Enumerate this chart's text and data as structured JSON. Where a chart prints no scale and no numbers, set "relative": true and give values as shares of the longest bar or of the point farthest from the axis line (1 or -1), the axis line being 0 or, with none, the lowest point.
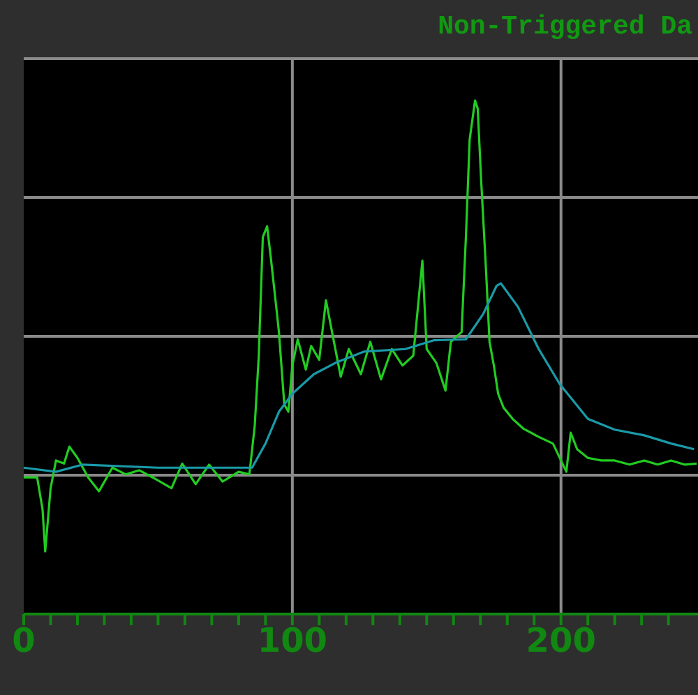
{
  "chart_data": {
    "type": "line",
    "title": "Non-Triggered Da",
    "relative": true,
    "grid": true,
    "xlim": [
      0,
      251
    ],
    "xticks": [
      0,
      {
        "value": 10,
        "label": null
      },
      {
        "value": 20,
        "label": null
      },
      {
        "value": 30,
        "label": null
      },
      {
        "value": 40,
        "label": null
      },
      {
        "value": 50,
        "label": null
      },
      {
        "value": 60,
        "label": null
      },
      {
        "value": 70,
        "label": null
      },
      {
        "value": 80,
        "label": null
      },
      {
        "value": 90,
        "label": null
      },
      100,
      {
        "value": 110,
        "label": null
      },
      {
        "value": 120,
        "label": null
      },
      {
        "value": 130,
        "label": null
      },
      {
        "value": 140,
        "label": null
      },
      {
        "value": 150,
        "label": null
      },
      {
        "value": 160,
        "label": null
      },
      {
        "value": 170,
        "label": null
      },
      {
        "value": 180,
        "label": null
      },
      {
        "value": 190,
        "label": null
      },
      200,
      {
        "value": 210,
        "label": null
      },
      {
        "value": 220,
        "label": null
      },
      {
        "value": 230,
        "label": null
      },
      {
        "value": 240,
        "label": null
      }
    ],
    "marker": "none",
    "line_style": "solid",
    "series": [
      {
        "color": "#22cc22",
        "x": [
          0,
          5,
          7,
          8,
          10,
          12,
          15,
          17,
          20,
          24,
          28,
          33,
          38,
          43,
          48,
          55,
          59,
          64,
          69,
          74,
          80,
          84,
          86,
          87.5,
          89,
          90.6,
          92,
          94,
          95,
          97,
          98.5,
          100,
          102,
          105,
          107,
          110,
          112.5,
          115,
          118,
          121,
          125.5,
          129,
          133,
          137,
          141,
          145,
          148.4,
          150,
          153.6,
          157,
          159,
          163,
          164.6,
          166,
          168,
          169,
          170.3,
          172,
          173.4,
          175,
          176.6,
          178.6,
          182,
          186,
          191.7,
          197,
          202,
          203.6,
          206,
          210,
          215,
          220,
          225.5,
          231,
          236,
          241,
          246,
          250.5
        ],
        "values": [
          0.266,
          0.266,
          0.204,
          0.122,
          0.245,
          0.299,
          0.293,
          0.326,
          0.304,
          0.266,
          0.239,
          0.285,
          0.272,
          0.28,
          0.266,
          0.245,
          0.293,
          0.253,
          0.291,
          0.258,
          0.277,
          0.272,
          0.367,
          0.503,
          0.734,
          0.755,
          0.693,
          0.598,
          0.549,
          0.408,
          0.394,
          0.484,
          0.535,
          0.476,
          0.522,
          0.495,
          0.611,
          0.543,
          0.462,
          0.516,
          0.467,
          0.53,
          0.457,
          0.516,
          0.484,
          0.503,
          0.688,
          0.516,
          0.489,
          0.435,
          0.53,
          0.549,
          0.734,
          0.924,
          1,
          0.984,
          0.842,
          0.679,
          0.53,
          0.484,
          0.429,
          0.402,
          0.38,
          0.361,
          0.345,
          0.332,
          0.277,
          0.353,
          0.321,
          0.304,
          0.299,
          0.299,
          0.291,
          0.299,
          0.291,
          0.299,
          0.291,
          0.293
        ]
      },
      {
        "color": "#1a9aa8",
        "x": [
          0,
          12,
          22,
          50,
          70,
          85,
          90,
          95,
          100,
          108,
          116,
          126.6,
          142,
          152.6,
          164.6,
          171,
          176,
          177.6,
          184,
          191.7,
          199.5,
          210,
          220,
          231,
          241,
          249.5
        ],
        "values": [
          0.285,
          0.277,
          0.291,
          0.285,
          0.285,
          0.285,
          0.332,
          0.394,
          0.429,
          0.467,
          0.489,
          0.511,
          0.516,
          0.533,
          0.535,
          0.584,
          0.639,
          0.644,
          0.598,
          0.516,
          0.448,
          0.38,
          0.359,
          0.348,
          0.332,
          0.321
        ]
      }
    ]
  }
}
